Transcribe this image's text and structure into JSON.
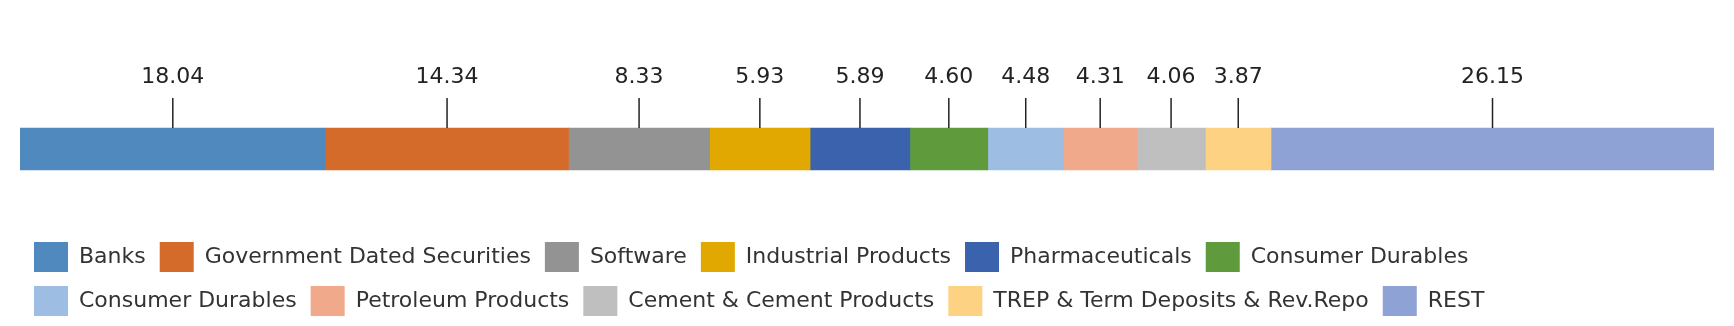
{
  "chart_data": {
    "type": "bar",
    "orientation": "horizontal",
    "stacked": true,
    "legend": "bottom",
    "xlim": [
      0,
      100
    ],
    "categories": [
      null
    ],
    "series": [
      {
        "name": "Banks",
        "color": "#4f89be",
        "values": [
          18.04
        ],
        "value_labels": [
          "18.04"
        ]
      },
      {
        "name": "Government Dated Securities",
        "color": "#d46b2a",
        "values": [
          14.34
        ],
        "value_labels": [
          "14.34"
        ]
      },
      {
        "name": "Software",
        "color": "#939393",
        "values": [
          8.33
        ],
        "value_labels": [
          "8.33"
        ]
      },
      {
        "name": "Industrial Products",
        "color": "#e0a800",
        "values": [
          5.93
        ],
        "value_labels": [
          "5.93"
        ]
      },
      {
        "name": "Pharmaceuticals",
        "color": "#3a62ad",
        "values": [
          5.89
        ],
        "value_labels": [
          "5.89"
        ]
      },
      {
        "name": "Consumer Durables",
        "color": "#5f9a3d",
        "values": [
          4.6
        ],
        "value_labels": [
          "4.60"
        ]
      },
      {
        "name": "Consumer Durables",
        "color": "#9dbde3",
        "values": [
          4.48
        ],
        "value_labels": [
          "4.48"
        ]
      },
      {
        "name": "Petroleum Products",
        "color": "#f0a98a",
        "values": [
          4.31
        ],
        "value_labels": [
          "4.31"
        ]
      },
      {
        "name": "Cement & Cement Products",
        "color": "#bfbfbf",
        "values": [
          4.06
        ],
        "value_labels": [
          "4.06"
        ]
      },
      {
        "name": "TREP & Term Deposits & Rev.Repo",
        "color": "#fdd282",
        "values": [
          3.87
        ],
        "value_labels": [
          "3.87"
        ]
      },
      {
        "name": "REST",
        "color": "#8fa2d5",
        "values": [
          26.15
        ],
        "value_labels": [
          "26.15"
        ]
      }
    ]
  }
}
